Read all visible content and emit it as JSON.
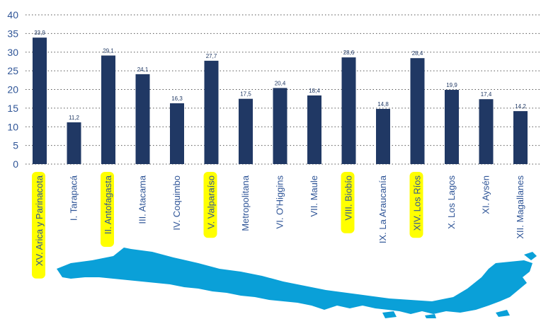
{
  "chart_data": {
    "type": "bar",
    "categories": [
      "XV. Arica y Parinacota",
      "I. Tarapacá",
      "II. Antofagasta",
      "III. Atacama",
      "IV. Coquimbo",
      "V. Valparaíso",
      "Metropolitana",
      "VI. O'Higgins",
      "VII. Maule",
      "VIII. Biobío",
      "IX. La Araucanía",
      "XIV. Los Ríos",
      "X. Los Lagos",
      "XI. Aysén",
      "XII. Magallanes"
    ],
    "values": [
      33.9,
      11.2,
      29.1,
      24.1,
      16.3,
      27.7,
      17.5,
      20.4,
      18.4,
      28.6,
      14.8,
      28.4,
      19.9,
      17.4,
      14.2
    ],
    "value_labels": [
      "33,9",
      "11,2",
      "29,1",
      "24,1",
      "16,3",
      "27,7",
      "17,5",
      "20,4",
      "18,4",
      "28,6",
      "14,8",
      "28,4",
      "19,9",
      "17,4",
      "14,2"
    ],
    "highlighted": [
      true,
      false,
      true,
      false,
      false,
      true,
      false,
      false,
      false,
      true,
      false,
      true,
      false,
      false,
      false
    ],
    "yticks": [
      "0",
      "5",
      "10",
      "15",
      "20",
      "25",
      "30",
      "35",
      "40"
    ],
    "ylim": [
      0,
      40
    ],
    "title": "",
    "xlabel": "",
    "ylabel": "",
    "grid": true,
    "legend": "none"
  },
  "colors": {
    "bar": "#203864",
    "highlight": "#ffff00",
    "map": "#0aa0d8",
    "axis_text": "#2f5597"
  },
  "decoration": {
    "map_icon": "chile-map-icon"
  }
}
